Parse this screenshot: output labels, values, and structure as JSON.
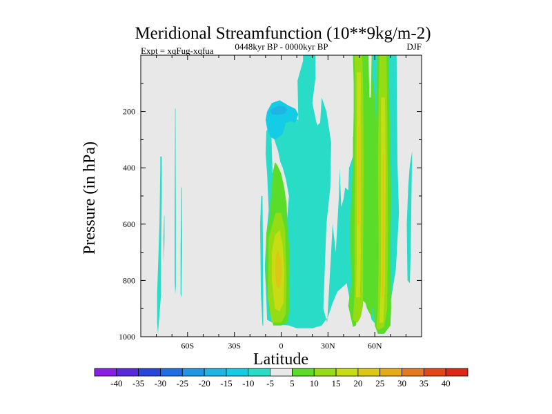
{
  "chart_data": {
    "type": "heatmap",
    "title": "Meridional Streamfunction (10**9kg/m-2)",
    "subtitle": "0448kyr BP - 0000kyr BP",
    "left_note": "Expt = xqFug-xqfua",
    "right_note": "DJF",
    "xlabel": "Latitude",
    "ylabel": "Pressure (in hPa)",
    "xlim": [
      -90,
      90
    ],
    "ylim": [
      1000,
      0
    ],
    "x_ticks": [
      {
        "value": -60,
        "label": "60S"
      },
      {
        "value": -30,
        "label": "30S"
      },
      {
        "value": 0,
        "label": "0"
      },
      {
        "value": 30,
        "label": "30N"
      },
      {
        "value": 60,
        "label": "60N"
      }
    ],
    "y_ticks": [
      {
        "value": 200,
        "label": "200"
      },
      {
        "value": 400,
        "label": "400"
      },
      {
        "value": 600,
        "label": "600"
      },
      {
        "value": 800,
        "label": "800"
      },
      {
        "value": 1000,
        "label": "1000"
      }
    ],
    "background_color": "#e8e8e8",
    "colorbar": {
      "labels": [
        "-40",
        "-35",
        "-30",
        "-25",
        "-20",
        "-15",
        "-10",
        "-5",
        "5",
        "10",
        "15",
        "20",
        "25",
        "30",
        "35",
        "40"
      ],
      "colors": [
        "#8a1ee6",
        "#5a28dc",
        "#2846dc",
        "#1e6ee6",
        "#1e96e6",
        "#1eb4e6",
        "#14cce6",
        "#28dcc8",
        "#e8e8e8",
        "#5adc28",
        "#96dc14",
        "#c8dc14",
        "#dcc814",
        "#e6aa14",
        "#e6781e",
        "#e64614",
        "#dc2814"
      ]
    },
    "regions": [
      {
        "color": "#28dcc8",
        "points": [
          [
            -79,
            990
          ],
          [
            -79.5,
            950
          ],
          [
            -79.5,
            850
          ],
          [
            -78,
            600
          ],
          [
            -77.5,
            400
          ],
          [
            -77.5,
            360
          ],
          [
            -76.5,
            360
          ],
          [
            -76.5,
            500
          ],
          [
            -77,
            700
          ],
          [
            -77,
            850
          ]
        ]
      },
      {
        "color": "#28dcc8",
        "points": [
          [
            -68,
            190
          ],
          [
            -68.3,
            600
          ],
          [
            -68.3,
            800
          ],
          [
            -67.9,
            850
          ],
          [
            -67.5,
            820
          ],
          [
            -67.5,
            600
          ],
          [
            -67.7,
            190
          ]
        ]
      },
      {
        "color": "#28dcc8",
        "points": [
          [
            -64,
            470
          ],
          [
            -64.5,
            700
          ],
          [
            -64.5,
            850
          ],
          [
            -63.9,
            860
          ],
          [
            -63.5,
            700
          ],
          [
            -63.6,
            470
          ]
        ]
      },
      {
        "color": "#28dcc8",
        "points": [
          [
            -75,
            570
          ],
          [
            -75.5,
            650
          ],
          [
            -75.2,
            740
          ],
          [
            -74.8,
            650
          ],
          [
            -74.8,
            570
          ]
        ]
      },
      {
        "color": "#28dcc8",
        "points": [
          [
            -9,
            940
          ],
          [
            -9.5,
            870
          ],
          [
            -10.5,
            750
          ],
          [
            -9.5,
            640
          ],
          [
            -8,
            550
          ],
          [
            -9,
            420
          ],
          [
            -10,
            350
          ],
          [
            -9.5,
            270
          ],
          [
            -6.5,
            240
          ],
          [
            -5.5,
            430
          ],
          [
            -3.5,
            600
          ],
          [
            0,
            640
          ],
          [
            3.5,
            600
          ],
          [
            5,
            500
          ],
          [
            3,
            440
          ],
          [
            1,
            400
          ],
          [
            -0.5,
            380
          ],
          [
            -2,
            340
          ],
          [
            -5,
            290
          ],
          [
            -6,
            240
          ],
          [
            -4,
            180
          ],
          [
            2.5,
            170
          ],
          [
            6,
            220
          ],
          [
            11,
            230
          ],
          [
            10.5,
            90
          ],
          [
            14,
            20
          ],
          [
            14,
            0
          ],
          [
            22,
            0
          ],
          [
            22,
            80
          ],
          [
            20,
            170
          ],
          [
            23,
            250
          ],
          [
            25,
            240
          ],
          [
            26,
            150
          ],
          [
            29,
            200
          ],
          [
            32,
            310
          ],
          [
            31.5,
            470
          ],
          [
            29,
            600
          ],
          [
            27,
            900
          ],
          [
            29.5,
            950
          ],
          [
            32,
            700
          ],
          [
            33,
            600
          ],
          [
            35,
            700
          ],
          [
            37,
            500
          ],
          [
            37.5,
            400
          ],
          [
            38.5,
            540
          ],
          [
            40,
            510
          ],
          [
            41,
            470
          ],
          [
            43,
            480
          ],
          [
            43.5,
            400
          ],
          [
            46,
            360
          ],
          [
            46,
            290
          ],
          [
            48.5,
            300
          ],
          [
            49,
            0
          ],
          [
            74,
            0
          ],
          [
            74.5,
            380
          ],
          [
            75.5,
            560
          ],
          [
            73.5,
            760
          ],
          [
            70,
            880
          ],
          [
            67,
            980
          ],
          [
            63,
            970
          ],
          [
            58,
            940
          ],
          [
            55,
            870
          ],
          [
            48,
            870
          ],
          [
            44,
            870
          ],
          [
            42,
            810
          ],
          [
            36,
            840
          ],
          [
            33,
            880
          ],
          [
            30,
            930
          ],
          [
            26,
            960
          ],
          [
            20,
            970
          ],
          [
            10,
            970
          ],
          [
            5,
            960
          ],
          [
            -4,
            955
          ]
        ]
      },
      {
        "color": "#28dcc8",
        "points": [
          [
            -12,
            960
          ],
          [
            -13,
            850
          ],
          [
            -13.5,
            600
          ],
          [
            -12.8,
            500
          ],
          [
            -12,
            500
          ],
          [
            -11.5,
            850
          ],
          [
            -11.5,
            960
          ]
        ]
      },
      {
        "color": "#28dcc8",
        "points": [
          [
            81,
            800
          ],
          [
            80.5,
            600
          ],
          [
            81.5,
            460
          ],
          [
            82.5,
            390
          ],
          [
            84,
            340
          ],
          [
            83.5,
            500
          ],
          [
            83,
            700
          ],
          [
            82.5,
            810
          ]
        ]
      },
      {
        "color": "#14cce6",
        "points": [
          [
            -9,
            200
          ],
          [
            -6,
            170
          ],
          [
            -1,
            160
          ],
          [
            5,
            180
          ],
          [
            9,
            190
          ],
          [
            11,
            210
          ],
          [
            9,
            240
          ],
          [
            6,
            235
          ],
          [
            3,
            240
          ],
          [
            1,
            280
          ],
          [
            -4,
            300
          ],
          [
            -7,
            290
          ],
          [
            -9,
            260
          ],
          [
            -10,
            230
          ]
        ]
      },
      {
        "color": "#1eb4e6",
        "points": [
          [
            -7,
            195
          ],
          [
            -2,
            180
          ],
          [
            2,
            182
          ],
          [
            4,
            195
          ],
          [
            2,
            208
          ],
          [
            -2,
            212
          ],
          [
            -6,
            210
          ]
        ]
      },
      {
        "color": "#5adc28",
        "points": [
          [
            -5,
            960
          ],
          [
            -8,
            900
          ],
          [
            -10,
            770
          ],
          [
            -9.5,
            630
          ],
          [
            -7.5,
            580
          ],
          [
            -6,
            470
          ],
          [
            -5.5,
            420
          ],
          [
            -4,
            380
          ],
          [
            -2.5,
            390
          ],
          [
            0,
            420
          ],
          [
            2,
            470
          ],
          [
            3.5,
            530
          ],
          [
            4,
            600
          ],
          [
            5.5,
            700
          ],
          [
            5,
            800
          ],
          [
            5.5,
            900
          ],
          [
            4,
            950
          ],
          [
            0,
            960
          ]
        ]
      },
      {
        "color": "#5adc28",
        "points": [
          [
            43,
            890
          ],
          [
            44,
            850
          ],
          [
            45,
            810
          ],
          [
            44,
            620
          ],
          [
            45.5,
            450
          ],
          [
            46,
            350
          ],
          [
            46.5,
            200
          ],
          [
            46.5,
            100
          ],
          [
            46,
            0
          ],
          [
            58.5,
            0
          ],
          [
            58.5,
            80
          ],
          [
            60,
            150
          ],
          [
            61,
            250
          ],
          [
            61.5,
            0
          ],
          [
            69,
            0
          ],
          [
            69,
            50
          ],
          [
            69.5,
            200
          ],
          [
            70,
            350
          ],
          [
            70.5,
            500
          ],
          [
            70,
            700
          ],
          [
            70.5,
            900
          ],
          [
            70,
            960
          ],
          [
            66,
            990
          ],
          [
            62,
            990
          ],
          [
            60,
            960
          ],
          [
            59,
            890
          ],
          [
            58,
            930
          ],
          [
            55,
            900
          ],
          [
            54,
            880
          ],
          [
            52,
            870
          ],
          [
            50,
            870
          ],
          [
            48,
            960
          ],
          [
            46,
            965
          ]
        ]
      },
      {
        "color": "#96dc14",
        "points": [
          [
            -6,
            950
          ],
          [
            -8.5,
            860
          ],
          [
            -8,
            650
          ],
          [
            -5,
            590
          ],
          [
            -3.5,
            560
          ],
          [
            0,
            560
          ],
          [
            2.5,
            620
          ],
          [
            3.5,
            800
          ],
          [
            3,
            920
          ],
          [
            0,
            950
          ]
        ]
      },
      {
        "color": "#96dc14",
        "points": [
          [
            46,
            940
          ],
          [
            47,
            850
          ],
          [
            47,
            600
          ],
          [
            47.5,
            100
          ],
          [
            47,
            0
          ],
          [
            52,
            0
          ],
          [
            52.5,
            100
          ],
          [
            53,
            400
          ],
          [
            52.5,
            700
          ],
          [
            52.5,
            890
          ],
          [
            51,
            930
          ],
          [
            49,
            950
          ]
        ]
      },
      {
        "color": "#96dc14",
        "points": [
          [
            61,
            970
          ],
          [
            62,
            900
          ],
          [
            62.5,
            700
          ],
          [
            62,
            400
          ],
          [
            62.5,
            150
          ],
          [
            63,
            0
          ],
          [
            67.5,
            0
          ],
          [
            68,
            200
          ],
          [
            68.5,
            600
          ],
          [
            68,
            900
          ],
          [
            66,
            965
          ],
          [
            63,
            975
          ]
        ]
      },
      {
        "color": "#c8dc14",
        "points": [
          [
            -4,
            900
          ],
          [
            -6,
            800
          ],
          [
            -6,
            700
          ],
          [
            -4,
            640
          ],
          [
            -1,
            620
          ],
          [
            1,
            680
          ],
          [
            2,
            760
          ],
          [
            1.5,
            880
          ],
          [
            -1,
            910
          ]
        ]
      },
      {
        "color": "#c8dc14",
        "points": [
          [
            48,
            860
          ],
          [
            48.5,
            700
          ],
          [
            48.5,
            300
          ],
          [
            48.5,
            60
          ],
          [
            51,
            60
          ],
          [
            51,
            300
          ],
          [
            51,
            700
          ],
          [
            50.5,
            860
          ]
        ]
      },
      {
        "color": "#c8dc14",
        "points": [
          [
            63,
            950
          ],
          [
            64,
            800
          ],
          [
            64,
            400
          ],
          [
            64,
            150
          ],
          [
            66.5,
            150
          ],
          [
            67,
            400
          ],
          [
            66.5,
            800
          ],
          [
            65.5,
            950
          ]
        ]
      },
      {
        "color": "#dcc814",
        "points": [
          [
            -3,
            820
          ],
          [
            -4,
            770
          ],
          [
            -3.5,
            710
          ],
          [
            -2,
            690
          ],
          [
            0,
            730
          ],
          [
            0.5,
            780
          ],
          [
            -1,
            830
          ]
        ]
      },
      {
        "color": "#dcc814",
        "points": [
          [
            49,
            600
          ],
          [
            49.2,
            400
          ],
          [
            49.5,
            250
          ],
          [
            50.3,
            250
          ],
          [
            50.4,
            400
          ],
          [
            50.2,
            600
          ]
        ]
      },
      {
        "color": "#dcc814",
        "points": [
          [
            64.5,
            860
          ],
          [
            65,
            700
          ],
          [
            65,
            500
          ],
          [
            65.3,
            350
          ],
          [
            66,
            350
          ],
          [
            66,
            500
          ],
          [
            66,
            700
          ],
          [
            65.6,
            860
          ]
        ]
      },
      {
        "color": "#e8e8e8",
        "points": [
          [
            56,
            0
          ],
          [
            56.5,
            150
          ],
          [
            57.5,
            150
          ],
          [
            58,
            0
          ]
        ]
      }
    ]
  }
}
